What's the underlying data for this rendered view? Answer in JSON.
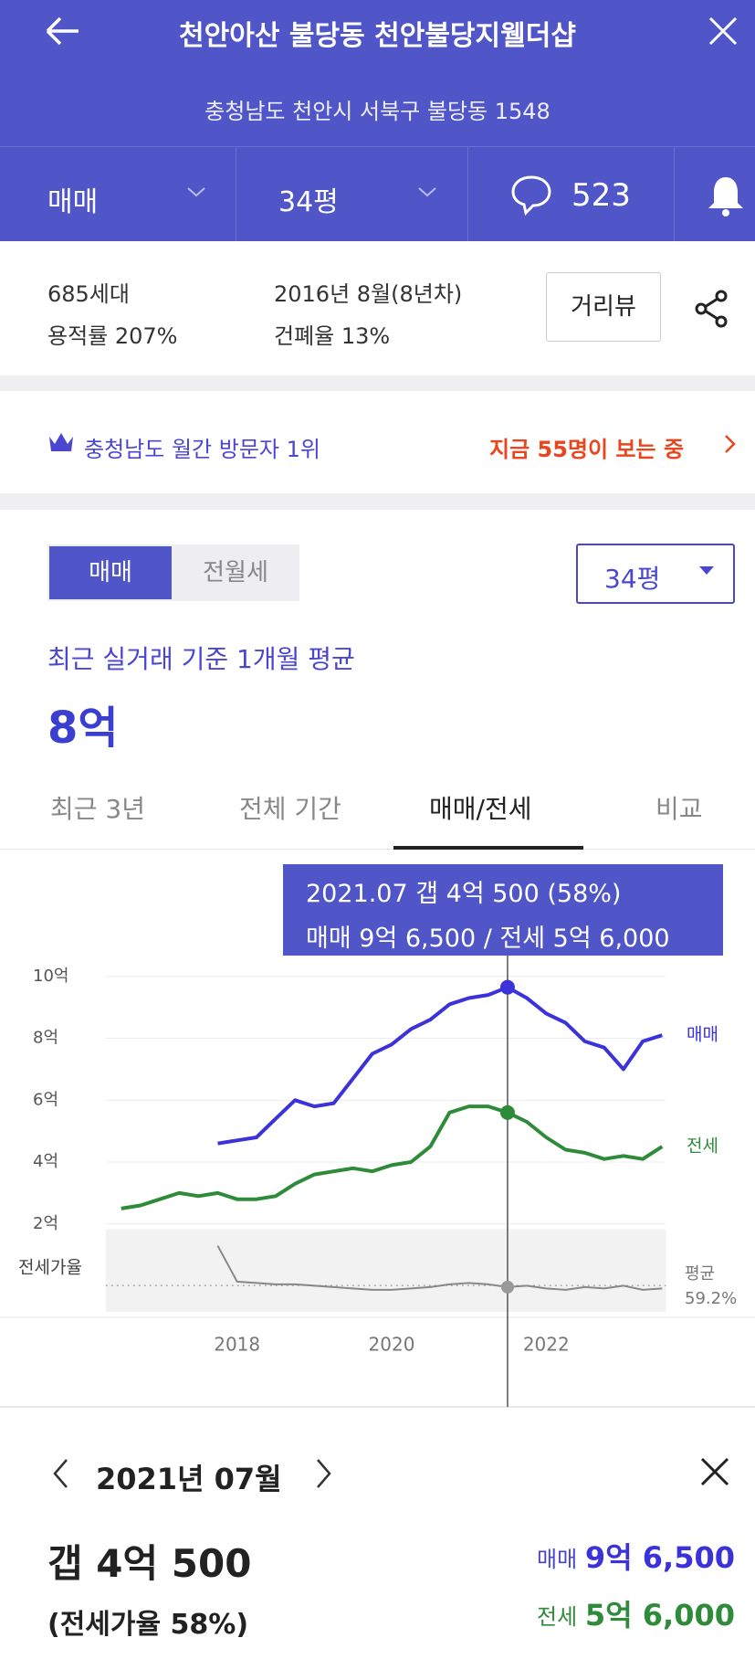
{
  "header": {
    "title": "천안아산 불당동 천안불당지웰더샵",
    "address": "충청남도 천안시 서북구 불당동 1548",
    "tabs": {
      "deal": "매매",
      "size": "34평",
      "comments": "523"
    }
  },
  "info": {
    "households": "685세대",
    "far": "용적률 207%",
    "built": "2016년 8월(8년차)",
    "bcr": "건폐율 13%",
    "street_view": "거리뷰"
  },
  "banner": {
    "rank": "충청남도 월간 방문자 1위",
    "viewers": "지금 55명이 보는 중"
  },
  "price": {
    "toggle": [
      "매매",
      "전월세"
    ],
    "size": "34평",
    "caption": "최근 실거래 기준 1개월 평균",
    "value": "8억"
  },
  "tabs": [
    "최근 3년",
    "전체 기간",
    "매매/전세",
    "비교"
  ],
  "tooltip": {
    "line1": "2021.07  갭 4억 500 (58%)",
    "line2": "매매 9억 6,500 / 전세 5억 6,000"
  },
  "chart_data": {
    "type": "line",
    "x": [
      2016.5,
      2016.75,
      2017,
      2017.25,
      2017.5,
      2017.75,
      2018,
      2018.25,
      2018.5,
      2018.75,
      2019,
      2019.25,
      2019.5,
      2019.75,
      2020,
      2020.25,
      2020.5,
      2020.75,
      2021,
      2021.25,
      2021.5,
      2021.75,
      2022,
      2022.25,
      2022.5,
      2022.75,
      2023,
      2023.25,
      2023.5
    ],
    "series": [
      {
        "name": "매매",
        "color": "#3b33d9",
        "values": [
          null,
          null,
          null,
          null,
          null,
          4.6,
          4.7,
          4.8,
          5.4,
          6.0,
          5.8,
          5.9,
          6.7,
          7.5,
          7.8,
          8.3,
          8.6,
          9.1,
          9.3,
          9.4,
          9.65,
          9.3,
          8.8,
          8.5,
          7.9,
          7.7,
          7.0,
          7.9,
          8.1
        ]
      },
      {
        "name": "전세",
        "color": "#2e8b3a",
        "values": [
          2.5,
          2.6,
          2.8,
          3.0,
          2.9,
          3.0,
          2.8,
          2.8,
          2.9,
          3.3,
          3.6,
          3.7,
          3.8,
          3.7,
          3.9,
          4.0,
          4.5,
          5.6,
          5.8,
          5.8,
          5.6,
          5.3,
          4.8,
          4.4,
          4.3,
          4.1,
          4.2,
          4.1,
          4.5
        ]
      }
    ],
    "xlim": [
      2016.3,
      2023.55
    ],
    "xticks": [
      2018,
      2020,
      2022
    ],
    "ylim": [
      2,
      10
    ],
    "yticks": [
      {
        "value": 2,
        "label": "2억"
      },
      {
        "value": 4,
        "label": "4억"
      },
      {
        "value": 6,
        "label": "6억"
      },
      {
        "value": 8,
        "label": "8억"
      },
      {
        "value": 10,
        "label": "10억"
      }
    ],
    "grid": true,
    "cursor_x": 2021.5,
    "ratio": {
      "name": "전세가율",
      "color": "#888888",
      "values": [
        null,
        null,
        null,
        null,
        null,
        88,
        62,
        61,
        60,
        60,
        59,
        58,
        57,
        56,
        56,
        57,
        58,
        60,
        61,
        60,
        58,
        59,
        57,
        56,
        58,
        57,
        59,
        56,
        57
      ],
      "ylim": [
        40,
        100
      ],
      "average": {
        "label": "평균",
        "value": 59.2,
        "value_label": "59.2%"
      }
    }
  },
  "detail": {
    "month": "2021년 07월",
    "gap": "갭 4억 500",
    "ratio": "(전세가율 58%)",
    "sale_label": "매매",
    "sale": "9억 6,500",
    "jeonse_label": "전세",
    "jeonse": "5억 6,000"
  }
}
